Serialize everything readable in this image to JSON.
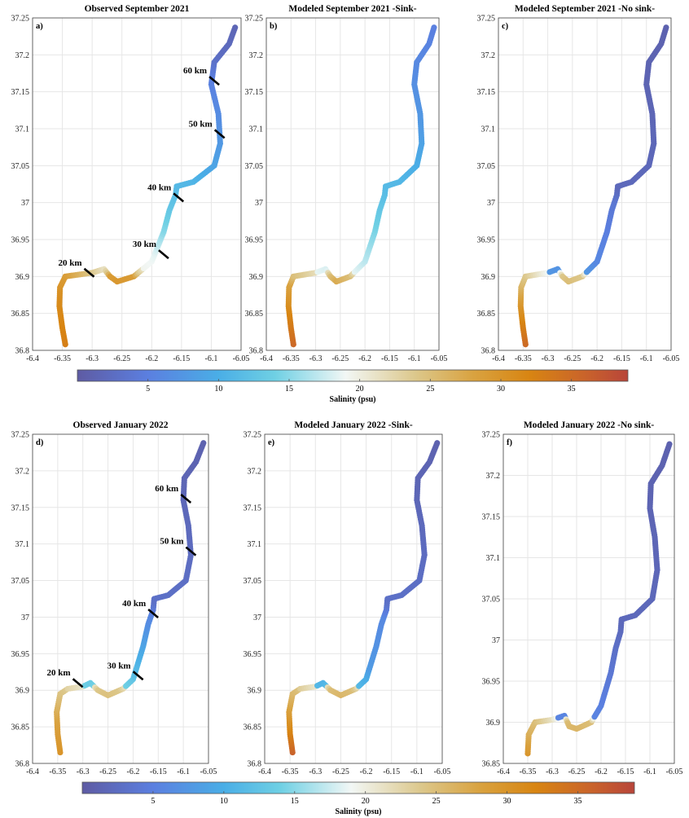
{
  "chart_data": [
    {
      "type": "scatter",
      "panel": "a)",
      "title": "Observed September 2021",
      "xlim": [
        -6.4,
        -6.05
      ],
      "ylim": [
        36.8,
        37.25
      ],
      "xticks": [
        "-6.4",
        "-6.35",
        "-6.3",
        "-6.25",
        "-6.2",
        "-6.15",
        "-6.1",
        "-6.05"
      ],
      "yticks": [
        "36.8",
        "36.85",
        "36.9",
        "36.95",
        "37",
        "37.05",
        "37.1",
        "37.15",
        "37.2",
        "37.25"
      ],
      "track": "sep",
      "salinity_profile": "obs_sep",
      "km_markers": [
        {
          "label": "20 km",
          "lon": -6.305,
          "lat": 36.905
        },
        {
          "label": "30 km",
          "lon": -6.18,
          "lat": 36.93
        },
        {
          "label": "40 km",
          "lon": -6.155,
          "lat": 37.007
        },
        {
          "label": "50 km",
          "lon": -6.086,
          "lat": 37.093
        },
        {
          "label": "60 km",
          "lon": -6.095,
          "lat": 37.165
        }
      ]
    },
    {
      "type": "scatter",
      "panel": "b)",
      "title": "Modeled September 2021 -Sink-",
      "xlim": [
        -6.4,
        -6.05
      ],
      "ylim": [
        36.8,
        37.25
      ],
      "xticks": [
        "-6.4",
        "-6.35",
        "-6.3",
        "-6.25",
        "-6.2",
        "-6.15",
        "-6.1",
        "-6.05"
      ],
      "yticks": [
        "36.8",
        "36.85",
        "36.9",
        "36.95",
        "37",
        "37.05",
        "37.1",
        "37.15",
        "37.2",
        "37.25"
      ],
      "track": "sep",
      "salinity_profile": "sink_sep",
      "km_markers": []
    },
    {
      "type": "scatter",
      "panel": "c)",
      "title": "Modeled September 2021 -No sink-",
      "xlim": [
        -6.4,
        -6.05
      ],
      "ylim": [
        36.8,
        37.25
      ],
      "xticks": [
        "-6.4",
        "-6.35",
        "-6.3",
        "-6.25",
        "-6.2",
        "-6.15",
        "-6.1",
        "-6.05"
      ],
      "yticks": [
        "36.8",
        "36.85",
        "36.9",
        "36.95",
        "37",
        "37.05",
        "37.1",
        "37.15",
        "37.2",
        "37.25"
      ],
      "track": "sep",
      "salinity_profile": "nosink_sep",
      "km_markers": []
    },
    {
      "type": "scatter",
      "panel": "d)",
      "title": "Observed January 2022",
      "xlim": [
        -6.4,
        -6.05
      ],
      "ylim": [
        36.8,
        37.25
      ],
      "xticks": [
        "-6.4",
        "-6.35",
        "-6.3",
        "-6.25",
        "-6.2",
        "-6.15",
        "-6.1",
        "-6.05"
      ],
      "yticks": [
        "36.8",
        "36.85",
        "36.9",
        "36.95",
        "37",
        "37.05",
        "37.1",
        "37.15",
        "37.2",
        "37.25"
      ],
      "track": "jan",
      "salinity_profile": "obs_jan",
      "km_markers": [
        {
          "label": "20 km",
          "lon": -6.31,
          "lat": 36.91
        },
        {
          "label": "30 km",
          "lon": -6.19,
          "lat": 36.92
        },
        {
          "label": "40 km",
          "lon": -6.16,
          "lat": 37.005
        },
        {
          "label": "50 km",
          "lon": -6.085,
          "lat": 37.09
        },
        {
          "label": "60 km",
          "lon": -6.095,
          "lat": 37.162
        }
      ]
    },
    {
      "type": "scatter",
      "panel": "e)",
      "title": "Modeled January 2022 -Sink-",
      "xlim": [
        -6.4,
        -6.05
      ],
      "ylim": [
        36.8,
        37.25
      ],
      "xticks": [
        "-6.4",
        "-6.35",
        "-6.3",
        "-6.25",
        "-6.2",
        "-6.15",
        "-6.1",
        "-6.05"
      ],
      "yticks": [
        "36.8",
        "36.85",
        "36.9",
        "36.95",
        "37",
        "37.05",
        "37.1",
        "37.15",
        "37.2",
        "37.25"
      ],
      "track": "jan",
      "salinity_profile": "sink_jan",
      "km_markers": []
    },
    {
      "type": "scatter",
      "panel": "f)",
      "title": "Modeled January 2022 -No sink-",
      "xlim": [
        -6.4,
        -6.05
      ],
      "ylim": [
        36.85,
        37.25
      ],
      "xticks": [
        "-6.4",
        "-6.35",
        "-6.3",
        "-6.25",
        "-6.2",
        "-6.15",
        "-6.1",
        "-6.05"
      ],
      "yticks": [
        "36.85",
        "36.9",
        "36.95",
        "37",
        "37.05",
        "37.1",
        "37.15",
        "37.2",
        "37.25"
      ],
      "track": "jan_f",
      "salinity_profile": "nosink_jan",
      "km_markers": []
    }
  ],
  "tracks": {
    "sep": [
      [
        -6.345,
        36.808
      ],
      [
        -6.35,
        36.83
      ],
      [
        -6.355,
        36.86
      ],
      [
        -6.354,
        36.885
      ],
      [
        -6.345,
        36.9
      ],
      [
        -6.3,
        36.905
      ],
      [
        -6.28,
        36.91
      ],
      [
        -6.27,
        36.9
      ],
      [
        -6.258,
        36.893
      ],
      [
        -6.23,
        36.9
      ],
      [
        -6.2,
        36.92
      ],
      [
        -6.18,
        36.96
      ],
      [
        -6.17,
        36.99
      ],
      [
        -6.16,
        37.01
      ],
      [
        -6.158,
        37.022
      ],
      [
        -6.13,
        37.028
      ],
      [
        -6.095,
        37.05
      ],
      [
        -6.085,
        37.08
      ],
      [
        -6.088,
        37.12
      ],
      [
        -6.1,
        37.16
      ],
      [
        -6.095,
        37.19
      ],
      [
        -6.07,
        37.215
      ],
      [
        -6.06,
        37.237
      ]
    ],
    "jan": [
      [
        -6.345,
        36.815
      ],
      [
        -6.35,
        36.84
      ],
      [
        -6.352,
        36.87
      ],
      [
        -6.345,
        36.895
      ],
      [
        -6.33,
        36.902
      ],
      [
        -6.3,
        36.905
      ],
      [
        -6.285,
        36.91
      ],
      [
        -6.27,
        36.9
      ],
      [
        -6.25,
        36.893
      ],
      [
        -6.22,
        36.902
      ],
      [
        -6.2,
        36.915
      ],
      [
        -6.18,
        36.96
      ],
      [
        -6.17,
        36.99
      ],
      [
        -6.16,
        37.01
      ],
      [
        -6.158,
        37.025
      ],
      [
        -6.13,
        37.03
      ],
      [
        -6.095,
        37.05
      ],
      [
        -6.085,
        37.085
      ],
      [
        -6.09,
        37.125
      ],
      [
        -6.1,
        37.16
      ],
      [
        -6.098,
        37.19
      ],
      [
        -6.075,
        37.212
      ],
      [
        -6.06,
        37.238
      ]
    ],
    "jan_f": [
      [
        -6.35,
        36.862
      ],
      [
        -6.348,
        36.885
      ],
      [
        -6.335,
        36.9
      ],
      [
        -6.3,
        36.903
      ],
      [
        -6.275,
        36.908
      ],
      [
        -6.265,
        36.895
      ],
      [
        -6.25,
        36.892
      ],
      [
        -6.22,
        36.9
      ],
      [
        -6.2,
        36.92
      ],
      [
        -6.18,
        36.96
      ],
      [
        -6.17,
        36.99
      ],
      [
        -6.16,
        37.01
      ],
      [
        -6.158,
        37.025
      ],
      [
        -6.13,
        37.03
      ],
      [
        -6.095,
        37.05
      ],
      [
        -6.085,
        37.085
      ],
      [
        -6.09,
        37.125
      ],
      [
        -6.1,
        37.16
      ],
      [
        -6.098,
        37.19
      ],
      [
        -6.075,
        37.212
      ],
      [
        -6.06,
        37.238
      ]
    ]
  },
  "salinity_profiles": {
    "obs_sep": [
      [
        36.8,
        33
      ],
      [
        36.87,
        31
      ],
      [
        36.9,
        29
      ],
      [
        36.905,
        24
      ],
      [
        36.91,
        21.5
      ],
      [
        36.895,
        20
      ],
      [
        36.93,
        18.5
      ],
      [
        36.96,
        15
      ],
      [
        36.99,
        13
      ],
      [
        37.02,
        11.5
      ],
      [
        37.05,
        9
      ],
      [
        37.1,
        7
      ],
      [
        37.17,
        5
      ],
      [
        37.2,
        2.5
      ],
      [
        37.24,
        1.5
      ]
    ],
    "sink_sep": [
      [
        36.8,
        36
      ],
      [
        36.85,
        32
      ],
      [
        36.89,
        28
      ],
      [
        36.9,
        25
      ],
      [
        36.905,
        22
      ],
      [
        36.893,
        20
      ],
      [
        36.92,
        17
      ],
      [
        36.97,
        14
      ],
      [
        37.02,
        11.5
      ],
      [
        37.05,
        10
      ],
      [
        37.1,
        8
      ],
      [
        37.17,
        6.5
      ],
      [
        37.24,
        5
      ]
    ],
    "nosink_sep": [
      [
        36.8,
        36
      ],
      [
        36.86,
        30
      ],
      [
        36.9,
        24
      ],
      [
        36.905,
        19
      ],
      [
        36.9,
        14
      ],
      [
        36.893,
        9
      ],
      [
        36.92,
        6
      ],
      [
        37.0,
        4
      ],
      [
        37.02,
        2
      ],
      [
        37.24,
        1
      ]
    ],
    "obs_jan": [
      [
        36.815,
        30
      ],
      [
        36.86,
        28
      ],
      [
        36.9,
        24
      ],
      [
        36.905,
        21
      ],
      [
        36.895,
        15.5
      ],
      [
        36.92,
        12
      ],
      [
        36.96,
        9
      ],
      [
        37.0,
        6
      ],
      [
        37.02,
        3
      ],
      [
        37.24,
        1
      ]
    ],
    "sink_jan": [
      [
        36.815,
        36
      ],
      [
        36.86,
        30
      ],
      [
        36.9,
        25
      ],
      [
        36.905,
        21
      ],
      [
        36.893,
        13
      ],
      [
        36.93,
        8
      ],
      [
        37.0,
        6
      ],
      [
        37.02,
        3
      ],
      [
        37.24,
        1
      ]
    ],
    "nosink_jan": [
      [
        36.86,
        30
      ],
      [
        36.9,
        25
      ],
      [
        36.905,
        19
      ],
      [
        36.895,
        11
      ],
      [
        36.892,
        6
      ],
      [
        36.96,
        4
      ],
      [
        37.02,
        2
      ],
      [
        37.24,
        1
      ]
    ]
  },
  "colorbar": {
    "label": "Salinity (psu)",
    "min": 0,
    "max": 39,
    "ticks": [
      "5",
      "10",
      "15",
      "20",
      "25",
      "30",
      "35"
    ],
    "stops": [
      {
        "v": 0,
        "color": "#5e5ba3"
      },
      {
        "v": 5,
        "color": "#5b7fe0"
      },
      {
        "v": 10,
        "color": "#4aaee6"
      },
      {
        "v": 14,
        "color": "#6fd0e4"
      },
      {
        "v": 19,
        "color": "#f2f7f5"
      },
      {
        "v": 24,
        "color": "#dcc78a"
      },
      {
        "v": 28,
        "color": "#d9a341"
      },
      {
        "v": 32,
        "color": "#d88512"
      },
      {
        "v": 36,
        "color": "#c9632b"
      },
      {
        "v": 39,
        "color": "#b8453a"
      }
    ]
  }
}
